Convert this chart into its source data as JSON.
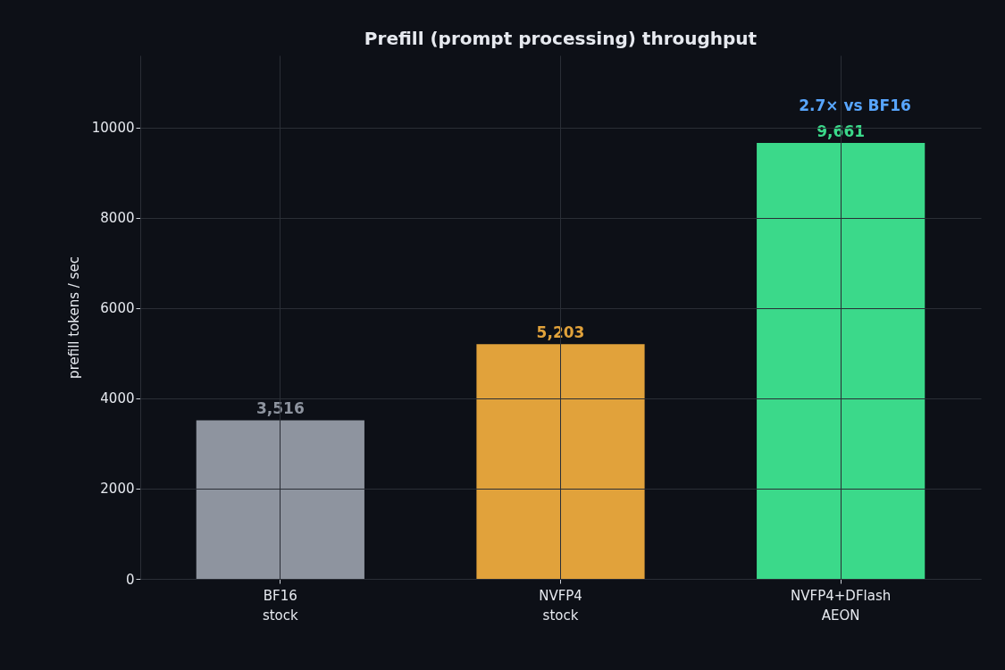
{
  "chart_data": {
    "type": "bar",
    "title": "Prefill (prompt processing) throughput",
    "ylabel": "prefill tokens / sec",
    "categories": [
      "BF16\nstock",
      "NVFP4\nstock",
      "NVFP4+DFlash\nAEON"
    ],
    "values": [
      3516,
      5203,
      9661
    ],
    "colors": [
      "#8e949f",
      "#e1a23b",
      "#3bd98a"
    ],
    "value_labels": [
      "3,516",
      "5,203",
      "9,661"
    ],
    "annotations": [
      "2.7× vs BF16"
    ],
    "ylim": [
      0,
      11600
    ],
    "yticks": [
      0,
      2000,
      4000,
      6000,
      8000,
      10000
    ],
    "grid": true
  }
}
